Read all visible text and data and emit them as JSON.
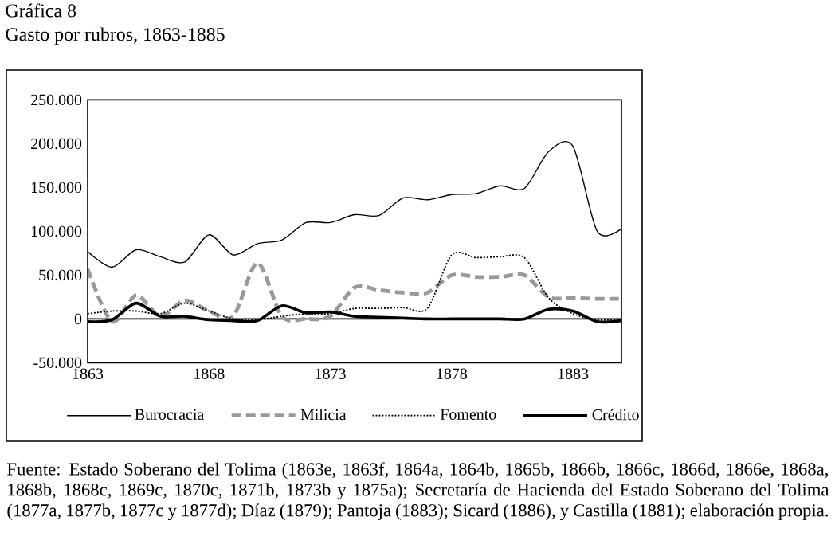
{
  "chart_data": {
    "type": "line",
    "title": "Gráfica 8",
    "subtitle": "Gasto por rubros, 1863-1885",
    "x": [
      1863,
      1864,
      1865,
      1866,
      1867,
      1868,
      1869,
      1870,
      1871,
      1872,
      1873,
      1874,
      1875,
      1876,
      1877,
      1878,
      1879,
      1880,
      1881,
      1882,
      1883,
      1884,
      1885
    ],
    "series": [
      {
        "name": "Burocracia",
        "color": "#000000",
        "line_style": "solid",
        "values": [
          77000,
          59000,
          79000,
          71000,
          65000,
          96000,
          73000,
          86000,
          90000,
          110000,
          110000,
          119000,
          118000,
          138000,
          136000,
          142000,
          143000,
          152000,
          149000,
          191000,
          197000,
          100000,
          103000
        ]
      },
      {
        "name": "Milicia",
        "color": "#999999",
        "line_style": "dashed",
        "values": [
          57000,
          -3000,
          27000,
          3000,
          21000,
          9000,
          3000,
          64000,
          3000,
          0,
          3000,
          36000,
          33000,
          30000,
          30000,
          50000,
          48000,
          48000,
          50000,
          25000,
          24000,
          23000,
          23000
        ]
      },
      {
        "name": "Fomento",
        "color": "#000000",
        "line_style": "dotted",
        "values": [
          6000,
          9000,
          9000,
          6000,
          18000,
          9000,
          0,
          -1000,
          3000,
          6000,
          6000,
          12000,
          12000,
          13000,
          12000,
          73000,
          70000,
          71000,
          70000,
          24000,
          6000,
          -1000,
          0
        ]
      },
      {
        "name": "Crédito",
        "color": "#000000",
        "line_style": "solid",
        "values": [
          -3000,
          -1000,
          18000,
          3000,
          3000,
          -1000,
          -2000,
          -2000,
          15000,
          7000,
          8000,
          3000,
          2000,
          1000,
          0,
          0,
          0,
          0,
          0,
          11000,
          9000,
          -3000,
          -2000
        ]
      }
    ],
    "xlim": [
      1863,
      1885
    ],
    "xticks": [
      1863,
      1868,
      1873,
      1878,
      1883
    ],
    "ylim": [
      -50000,
      250000
    ],
    "yticks": [
      {
        "value": -50000,
        "label": "-50.000"
      },
      {
        "value": 0,
        "label": "0"
      },
      {
        "value": 50000,
        "label": "50.000"
      },
      {
        "value": 100000,
        "label": "100.000"
      },
      {
        "value": 150000,
        "label": "150.000"
      },
      {
        "value": 200000,
        "label": "200.000"
      },
      {
        "value": 250000,
        "label": "250.000"
      }
    ],
    "ref_lines": [
      {
        "axis": "y",
        "value": 0,
        "color": "#000000"
      }
    ],
    "legend": "bottom",
    "grid": false,
    "marker": "none",
    "annotations": [
      "Fuente: Estado Soberano del Tolima (1863e, 1863f, 1864a, 1864b, 1865b, 1866b, 1866c, 1866d, 1866e, 1868a, 1868b, 1868c, 1869c, 1870c, 1871b, 1873b y 1875a); Secretaría de Hacienda del Estado Soberano del Tolima (1877a, 1877b, 1877c y 1877d); Díaz (1879); Pantoja (1883); Sicard (1886), y Castilla (1881); elaboración propia."
    ]
  }
}
